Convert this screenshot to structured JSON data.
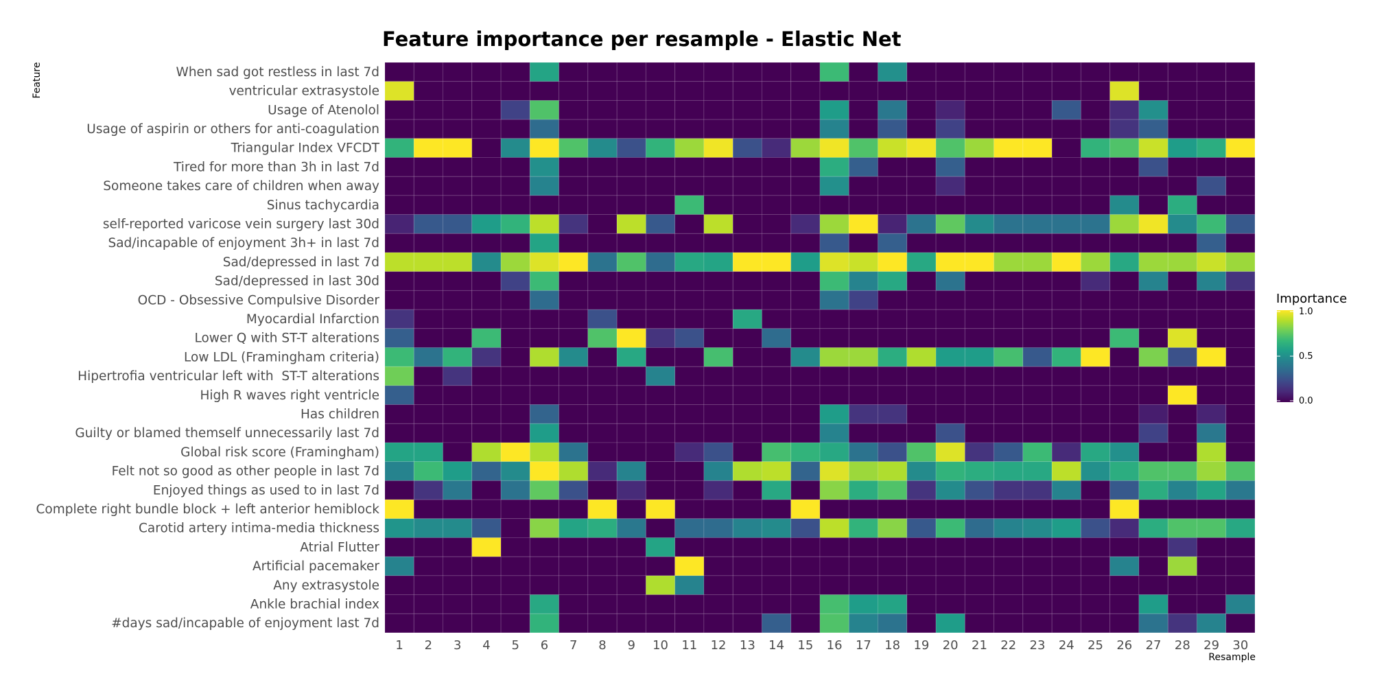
{
  "chart_data": {
    "type": "heatmap",
    "title": "Feature importance per resample - Elastic Net",
    "xlabel": "Resample",
    "ylabel": "Feature",
    "legend_title": "Importance",
    "legend_ticks": [
      "0.0",
      "0.5",
      "1.0"
    ],
    "legend_position": "right",
    "colorscale": "viridis",
    "zlim": [
      0,
      1
    ],
    "x": [
      "1",
      "2",
      "3",
      "4",
      "5",
      "6",
      "7",
      "8",
      "9",
      "10",
      "11",
      "12",
      "13",
      "14",
      "15",
      "16",
      "17",
      "18",
      "19",
      "20",
      "21",
      "22",
      "23",
      "24",
      "25",
      "26",
      "27",
      "28",
      "29",
      "30"
    ],
    "features": [
      "When sad got restless in last 7d",
      "ventricular extrasystole",
      "Usage of Atenolol",
      "Usage of aspirin or others for anti-coagulation",
      "Triangular Index VFCDT",
      "Tired for more than 3h in last 7d",
      "Someone takes care of children when away",
      "Sinus tachycardia",
      "self-reported varicose vein surgery last 30d",
      "Sad/incapable of enjoyment 3h+ in last 7d",
      "Sad/depressed in last 7d",
      "Sad/depressed in last 30d",
      "OCD - Obsessive Compulsive Disorder",
      "Myocardial Infarction",
      "Lower Q with ST-T alterations",
      "Low LDL (Framingham criteria)",
      "Hipertrofia ventricular left with  ST-T alterations",
      "High R waves right ventricle",
      "Has children",
      "Guilty or blamed themself unnecessarily last 7d",
      "Global risk score (Framingham)",
      "Felt not so good as other people in last 7d",
      "Enjoyed things as used to in last 7d",
      "Complete right bundle block + left anterior hemiblock",
      "Carotid artery intima-media thickness",
      "Atrial Flutter",
      "Artificial pacemaker",
      "Any extrasystole",
      "Ankle brachial index",
      "#days sad/incapable of enjoyment last 7d"
    ],
    "values": [
      [
        0,
        0,
        0,
        0,
        0,
        0.58,
        0,
        0,
        0,
        0,
        0,
        0,
        0,
        0,
        0,
        0.68,
        0,
        0.5,
        0,
        0,
        0,
        0,
        0,
        0,
        0,
        0,
        0,
        0,
        0,
        0
      ],
      [
        0.95,
        0,
        0,
        0,
        0,
        0,
        0,
        0,
        0,
        0,
        0,
        0,
        0,
        0,
        0,
        0,
        0,
        0,
        0,
        0,
        0,
        0,
        0,
        0,
        0,
        0.95,
        0,
        0,
        0,
        0
      ],
      [
        0,
        0,
        0,
        0,
        0.2,
        0.72,
        0,
        0,
        0,
        0,
        0,
        0,
        0,
        0,
        0,
        0.55,
        0,
        0.4,
        0,
        0.1,
        0,
        0,
        0,
        0.28,
        0,
        0.12,
        0.5,
        0,
        0,
        0
      ],
      [
        0,
        0,
        0,
        0,
        0,
        0.35,
        0,
        0,
        0,
        0,
        0,
        0,
        0,
        0,
        0,
        0.45,
        0,
        0.28,
        0,
        0.2,
        0,
        0,
        0,
        0,
        0,
        0.15,
        0.3,
        0,
        0,
        0
      ],
      [
        0.65,
        1.0,
        1.0,
        0,
        0.48,
        1.0,
        0.72,
        0.48,
        0.25,
        0.65,
        0.85,
        0.98,
        0.25,
        0.12,
        0.85,
        0.98,
        0.72,
        0.92,
        0.98,
        0.72,
        0.85,
        1.0,
        1.0,
        0,
        0.65,
        0.72,
        0.92,
        0.55,
        0.62,
        1.0
      ],
      [
        0,
        0,
        0,
        0,
        0,
        0.5,
        0,
        0,
        0,
        0,
        0,
        0,
        0,
        0,
        0,
        0.62,
        0.3,
        0,
        0,
        0.3,
        0,
        0,
        0,
        0,
        0,
        0,
        0.25,
        0,
        0,
        0
      ],
      [
        0,
        0,
        0,
        0,
        0,
        0.45,
        0,
        0,
        0,
        0,
        0,
        0,
        0,
        0,
        0,
        0.5,
        0,
        0,
        0,
        0.12,
        0,
        0,
        0,
        0,
        0,
        0,
        0,
        0,
        0.25,
        0
      ],
      [
        0,
        0,
        0,
        0,
        0,
        0,
        0,
        0,
        0,
        0,
        0.68,
        0,
        0,
        0,
        0,
        0,
        0,
        0,
        0,
        0,
        0,
        0,
        0,
        0,
        0,
        0.48,
        0,
        0.62,
        0,
        0
      ],
      [
        0.1,
        0.28,
        0.28,
        0.55,
        0.65,
        0.9,
        0.15,
        0,
        0.9,
        0.28,
        0,
        0.9,
        0,
        0,
        0.12,
        0.85,
        1.0,
        0.1,
        0.38,
        0.75,
        0.48,
        0.38,
        0.38,
        0.38,
        0.38,
        0.85,
        0.98,
        0.48,
        0.68,
        0.28
      ],
      [
        0,
        0,
        0,
        0,
        0,
        0.58,
        0,
        0,
        0,
        0,
        0,
        0,
        0,
        0,
        0,
        0.28,
        0,
        0.3,
        0,
        0,
        0,
        0,
        0,
        0,
        0,
        0,
        0,
        0,
        0.3,
        0
      ],
      [
        0.9,
        0.9,
        0.9,
        0.48,
        0.85,
        0.95,
        1.0,
        0.38,
        0.72,
        0.35,
        0.6,
        0.58,
        1.0,
        1.0,
        0.55,
        0.95,
        0.92,
        1.0,
        0.6,
        1.0,
        1.0,
        0.85,
        0.85,
        1.0,
        0.85,
        0.6,
        0.85,
        0.85,
        0.92,
        0.85
      ],
      [
        0,
        0,
        0,
        0,
        0.2,
        0.68,
        0,
        0,
        0,
        0,
        0,
        0,
        0,
        0,
        0,
        0.68,
        0.45,
        0.6,
        0,
        0.38,
        0,
        0,
        0,
        0,
        0.12,
        0,
        0.45,
        0,
        0.45,
        0.15
      ],
      [
        0,
        0,
        0,
        0,
        0,
        0.35,
        0,
        0,
        0,
        0,
        0,
        0,
        0,
        0,
        0,
        0.38,
        0.2,
        0,
        0,
        0,
        0,
        0,
        0,
        0,
        0,
        0,
        0,
        0,
        0,
        0
      ],
      [
        0.15,
        0,
        0,
        0,
        0,
        0,
        0,
        0.25,
        0,
        0,
        0,
        0,
        0.6,
        0,
        0,
        0,
        0,
        0,
        0,
        0,
        0,
        0,
        0,
        0,
        0,
        0,
        0,
        0,
        0,
        0
      ],
      [
        0.3,
        0,
        0,
        0.68,
        0,
        0,
        0,
        0.72,
        1.0,
        0.15,
        0.25,
        0,
        0,
        0.35,
        0,
        0,
        0,
        0,
        0,
        0,
        0,
        0,
        0,
        0,
        0,
        0.68,
        0,
        0.95,
        0,
        0
      ],
      [
        0.68,
        0.38,
        0.65,
        0.15,
        0,
        0.88,
        0.48,
        0,
        0.6,
        0,
        0,
        0.7,
        0,
        0,
        0.48,
        0.85,
        0.85,
        0.62,
        0.88,
        0.55,
        0.55,
        0.7,
        0.28,
        0.65,
        1.0,
        0,
        0.8,
        0.25,
        1.0,
        0
      ],
      [
        0.78,
        0,
        0.15,
        0,
        0,
        0,
        0,
        0,
        0,
        0.45,
        0,
        0,
        0,
        0,
        0,
        0,
        0,
        0,
        0,
        0,
        0,
        0,
        0,
        0,
        0,
        0,
        0,
        0,
        0,
        0
      ],
      [
        0.3,
        0,
        0,
        0,
        0,
        0,
        0,
        0,
        0,
        0,
        0,
        0,
        0,
        0,
        0,
        0,
        0,
        0,
        0,
        0,
        0,
        0,
        0,
        0,
        0,
        0,
        0,
        1.0,
        0,
        0
      ],
      [
        0,
        0,
        0,
        0,
        0,
        0.32,
        0,
        0,
        0,
        0,
        0,
        0,
        0,
        0,
        0,
        0.55,
        0.15,
        0.15,
        0,
        0,
        0,
        0,
        0,
        0,
        0,
        0,
        0.08,
        0,
        0.1,
        0
      ],
      [
        0,
        0,
        0,
        0,
        0,
        0.55,
        0,
        0,
        0,
        0,
        0,
        0,
        0,
        0,
        0,
        0.45,
        0,
        0,
        0,
        0.25,
        0,
        0,
        0,
        0,
        0,
        0,
        0.2,
        0,
        0.4,
        0
      ],
      [
        0.58,
        0.58,
        0,
        0.88,
        1.0,
        0.88,
        0.38,
        0,
        0,
        0,
        0.12,
        0.25,
        0,
        0.7,
        0.65,
        0.6,
        0.38,
        0.25,
        0.72,
        0.95,
        0.15,
        0.28,
        0.68,
        0.12,
        0.6,
        0.5,
        0,
        0,
        0.88,
        0
      ],
      [
        0.45,
        0.68,
        0.55,
        0.32,
        0.48,
        1.0,
        0.88,
        0.12,
        0.45,
        0,
        0,
        0.45,
        0.88,
        0.9,
        0.32,
        0.95,
        0.85,
        0.88,
        0.48,
        0.65,
        0.62,
        0.6,
        0.6,
        0.9,
        0.5,
        0.62,
        0.72,
        0.72,
        0.85,
        0.72
      ],
      [
        0,
        0.15,
        0.4,
        0,
        0.38,
        0.75,
        0.25,
        0,
        0.12,
        0,
        0,
        0.12,
        0,
        0.6,
        0,
        0.82,
        0.62,
        0.72,
        0.15,
        0.48,
        0.25,
        0.15,
        0.15,
        0.45,
        0,
        0.28,
        0.62,
        0.45,
        0.58,
        0.4
      ],
      [
        1.0,
        0,
        0,
        0,
        0,
        0,
        0,
        1.0,
        0,
        1.0,
        0,
        0,
        0,
        0,
        1.0,
        0,
        0,
        0,
        0,
        0,
        0,
        0,
        0,
        0,
        0,
        1.0,
        0,
        0,
        0,
        0
      ],
      [
        0.52,
        0.48,
        0.48,
        0.28,
        0,
        0.82,
        0.58,
        0.62,
        0.4,
        0,
        0.35,
        0.35,
        0.45,
        0.48,
        0.25,
        0.9,
        0.65,
        0.82,
        0.28,
        0.68,
        0.35,
        0.45,
        0.48,
        0.55,
        0.25,
        0.12,
        0.62,
        0.72,
        0.72,
        0.6
      ],
      [
        0,
        0,
        0,
        1.0,
        0,
        0,
        0,
        0,
        0,
        0.58,
        0,
        0,
        0,
        0,
        0,
        0,
        0,
        0,
        0,
        0,
        0,
        0,
        0,
        0,
        0,
        0,
        0,
        0.15,
        0,
        0
      ],
      [
        0.45,
        0,
        0,
        0,
        0,
        0,
        0,
        0,
        0,
        0,
        1.0,
        0,
        0,
        0,
        0,
        0,
        0,
        0,
        0,
        0,
        0,
        0,
        0,
        0,
        0,
        0.45,
        0,
        0.85,
        0,
        0
      ],
      [
        0,
        0,
        0,
        0,
        0,
        0,
        0,
        0,
        0,
        0.88,
        0.45,
        0,
        0,
        0,
        0,
        0,
        0,
        0,
        0,
        0,
        0,
        0,
        0,
        0,
        0,
        0,
        0,
        0,
        0,
        0
      ],
      [
        0,
        0,
        0,
        0,
        0,
        0.6,
        0,
        0,
        0,
        0,
        0,
        0,
        0,
        0,
        0,
        0.7,
        0.55,
        0.58,
        0,
        0,
        0,
        0,
        0,
        0,
        0,
        0,
        0.55,
        0,
        0,
        0.45
      ],
      [
        0,
        0,
        0,
        0,
        0,
        0.65,
        0,
        0,
        0,
        0,
        0,
        0,
        0,
        0.3,
        0,
        0.72,
        0.45,
        0.38,
        0,
        0.55,
        0,
        0,
        0,
        0,
        0,
        0,
        0.38,
        0.15,
        0.45,
        0
      ]
    ]
  }
}
